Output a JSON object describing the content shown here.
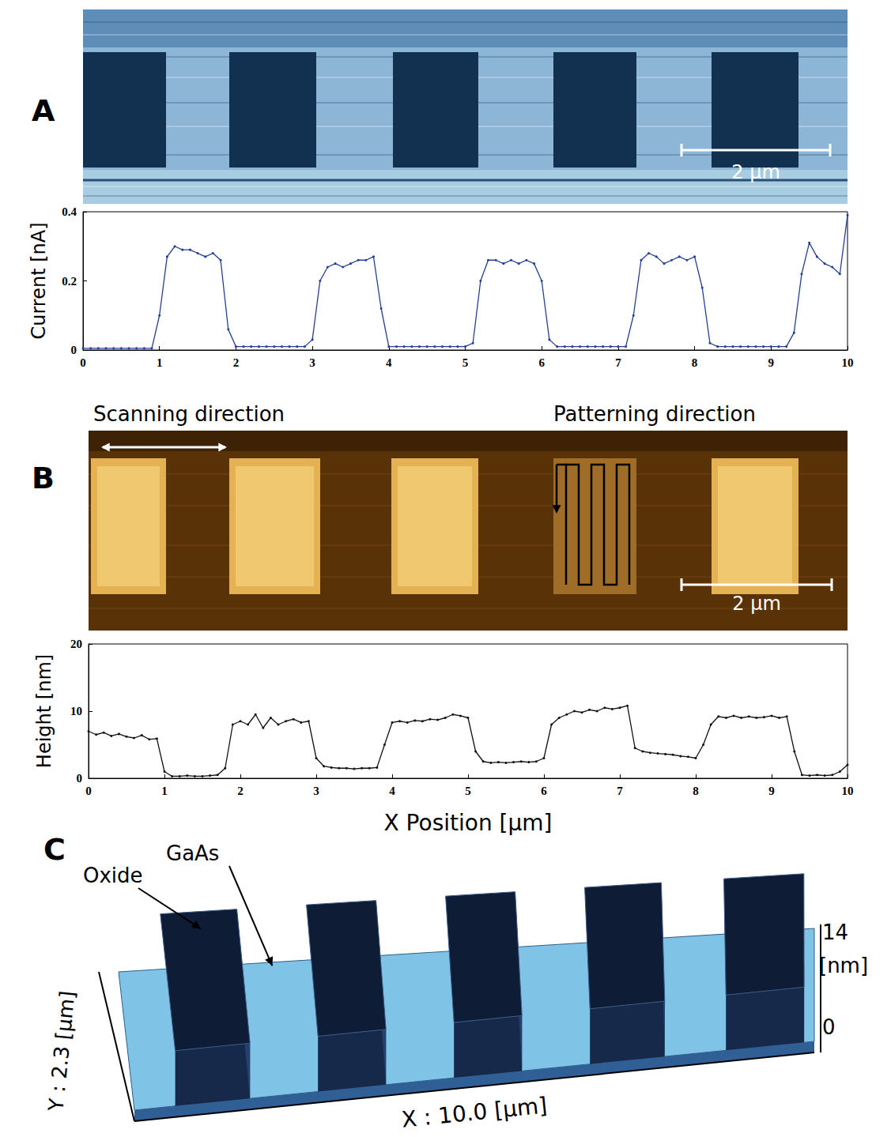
{
  "chart_data": [
    {
      "type": "line",
      "y_label": "Current [nA]",
      "color": "#233f94",
      "marker": "dot",
      "grid": false,
      "xlim": [
        0,
        10
      ],
      "xticks": [
        0,
        1,
        2,
        3,
        4,
        5,
        6,
        7,
        8,
        9,
        10
      ],
      "ylim": [
        0,
        0.4
      ],
      "yticks": [
        0,
        0.2,
        0.4
      ],
      "x": [
        0,
        0.1,
        0.2,
        0.3,
        0.4,
        0.5,
        0.6,
        0.7,
        0.8,
        0.9,
        1,
        1.1,
        1.2,
        1.3,
        1.4,
        1.5,
        1.6,
        1.7,
        1.8,
        1.9,
        2,
        2.1,
        2.2,
        2.3,
        2.4,
        2.5,
        2.6,
        2.7,
        2.8,
        2.9,
        3,
        3.1,
        3.2,
        3.3,
        3.4,
        3.5,
        3.6,
        3.7,
        3.8,
        3.9,
        4,
        4.1,
        4.2,
        4.3,
        4.4,
        4.5,
        4.6,
        4.7,
        4.8,
        4.9,
        5,
        5.1,
        5.2,
        5.3,
        5.4,
        5.5,
        5.6,
        5.7,
        5.8,
        5.9,
        6,
        6.1,
        6.2,
        6.3,
        6.4,
        6.5,
        6.6,
        6.7,
        6.8,
        6.9,
        7,
        7.1,
        7.2,
        7.3,
        7.4,
        7.5,
        7.6,
        7.7,
        7.8,
        7.9,
        8,
        8.1,
        8.2,
        8.3,
        8.4,
        8.5,
        8.6,
        8.7,
        8.8,
        8.9,
        9,
        9.1,
        9.2,
        9.3,
        9.4,
        9.5,
        9.6,
        9.7,
        9.8,
        9.9,
        10
      ],
      "values": [
        0.005,
        0.005,
        0.005,
        0.005,
        0.005,
        0.005,
        0.005,
        0.005,
        0.005,
        0.005,
        0.1,
        0.27,
        0.3,
        0.29,
        0.29,
        0.28,
        0.27,
        0.28,
        0.26,
        0.06,
        0.01,
        0.01,
        0.01,
        0.01,
        0.01,
        0.01,
        0.01,
        0.01,
        0.01,
        0.01,
        0.03,
        0.2,
        0.24,
        0.25,
        0.24,
        0.25,
        0.26,
        0.26,
        0.27,
        0.12,
        0.01,
        0.01,
        0.01,
        0.01,
        0.01,
        0.01,
        0.01,
        0.01,
        0.01,
        0.01,
        0.01,
        0.02,
        0.2,
        0.26,
        0.26,
        0.25,
        0.26,
        0.25,
        0.26,
        0.25,
        0.2,
        0.03,
        0.01,
        0.01,
        0.01,
        0.01,
        0.01,
        0.01,
        0.01,
        0.01,
        0.01,
        0.01,
        0.1,
        0.26,
        0.28,
        0.27,
        0.25,
        0.26,
        0.27,
        0.26,
        0.27,
        0.18,
        0.02,
        0.01,
        0.01,
        0.01,
        0.01,
        0.01,
        0.01,
        0.01,
        0.01,
        0.01,
        0.01,
        0.05,
        0.22,
        0.31,
        0.27,
        0.25,
        0.24,
        0.22,
        0.39
      ]
    },
    {
      "type": "line",
      "y_label": "Height [nm]",
      "x_label": "X Position [μm]",
      "color": "#111111",
      "marker": "dot",
      "grid": false,
      "xlim": [
        0,
        10
      ],
      "xticks": [
        0,
        1,
        2,
        3,
        4,
        5,
        6,
        7,
        8,
        9,
        10
      ],
      "ylim": [
        0,
        20
      ],
      "yticks": [
        0,
        10,
        20
      ],
      "x": [
        0,
        0.1,
        0.2,
        0.3,
        0.4,
        0.5,
        0.6,
        0.7,
        0.8,
        0.9,
        1,
        1.1,
        1.2,
        1.3,
        1.4,
        1.5,
        1.6,
        1.7,
        1.8,
        1.9,
        2,
        2.1,
        2.2,
        2.3,
        2.4,
        2.5,
        2.6,
        2.7,
        2.8,
        2.9,
        3,
        3.1,
        3.2,
        3.3,
        3.4,
        3.5,
        3.6,
        3.7,
        3.8,
        3.9,
        4,
        4.1,
        4.2,
        4.3,
        4.4,
        4.5,
        4.6,
        4.7,
        4.8,
        4.9,
        5,
        5.1,
        5.2,
        5.3,
        5.4,
        5.5,
        5.6,
        5.7,
        5.8,
        5.9,
        6,
        6.1,
        6.2,
        6.3,
        6.4,
        6.5,
        6.6,
        6.7,
        6.8,
        6.9,
        7,
        7.1,
        7.2,
        7.3,
        7.4,
        7.5,
        7.6,
        7.7,
        7.8,
        7.9,
        8,
        8.1,
        8.2,
        8.3,
        8.4,
        8.5,
        8.6,
        8.7,
        8.8,
        8.9,
        9,
        9.1,
        9.2,
        9.3,
        9.4,
        9.5,
        9.6,
        9.7,
        9.8,
        9.9,
        10
      ],
      "values": [
        7.0,
        6.5,
        6.8,
        6.3,
        6.6,
        6.2,
        6.0,
        6.4,
        5.8,
        5.9,
        1.0,
        0.3,
        0.3,
        0.4,
        0.3,
        0.3,
        0.4,
        0.5,
        1.5,
        8.0,
        8.5,
        8.0,
        9.5,
        7.5,
        9.0,
        8.0,
        8.5,
        8.8,
        8.3,
        8.5,
        3.0,
        1.8,
        1.6,
        1.5,
        1.5,
        1.4,
        1.5,
        1.5,
        1.6,
        5.0,
        8.3,
        8.5,
        8.3,
        8.6,
        8.5,
        8.8,
        8.7,
        9.0,
        9.5,
        9.3,
        9.0,
        4.0,
        2.5,
        2.3,
        2.4,
        2.3,
        2.4,
        2.5,
        2.4,
        2.5,
        3.0,
        8.0,
        9.0,
        9.5,
        10.0,
        9.8,
        10.2,
        10.0,
        10.5,
        10.3,
        10.5,
        10.8,
        4.5,
        4.0,
        3.8,
        3.7,
        3.6,
        3.5,
        3.3,
        3.2,
        3.0,
        5.0,
        8.0,
        9.2,
        9.0,
        9.3,
        9.0,
        9.2,
        9.0,
        9.1,
        9.3,
        9.0,
        9.2,
        4.0,
        0.5,
        0.4,
        0.5,
        0.4,
        0.5,
        1.0,
        2.0
      ]
    }
  ],
  "figure": {
    "panel_labels": [
      "A",
      "B",
      "C"
    ],
    "A": {
      "scale_bar": "2 μm"
    },
    "B": {
      "scale_bar": "2 μm",
      "scanning_label": "Scanning direction",
      "patterning_label": "Patterning direction"
    },
    "C": {
      "annotations": [
        "Oxide",
        "GaAs"
      ],
      "x_axis": "X : 10.0 [μm]",
      "y_axis": "Y : 2.3 [μm]",
      "z_unit": "[nm]",
      "z_ticks": [
        0,
        14
      ]
    }
  }
}
